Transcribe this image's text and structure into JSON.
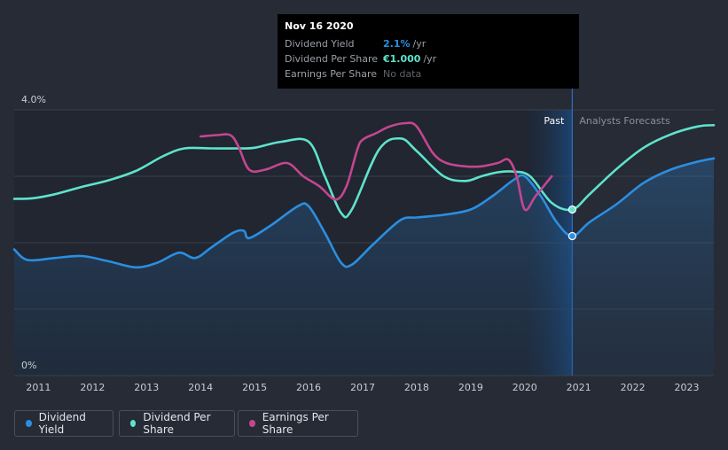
{
  "chart_data": {
    "type": "area",
    "y_labels": [
      "4.0%",
      "0%"
    ],
    "x_ticks": [
      "2011",
      "2012",
      "2013",
      "2014",
      "2015",
      "2016",
      "2017",
      "2018",
      "2019",
      "2020",
      "2021",
      "2022",
      "2023"
    ],
    "x_range": [
      2010.55,
      2023.5
    ],
    "ylim": [
      0,
      4.0
    ],
    "past_label": "Past",
    "forecast_label": "Analysts Forecasts",
    "hover_date": 2020.88,
    "series": [
      {
        "name": "Dividend Yield",
        "color": "#2b8ee0",
        "fill": true,
        "x": [
          2010.55,
          2010.8,
          2011.3,
          2011.8,
          2012.3,
          2012.8,
          2013.2,
          2013.6,
          2013.9,
          2014.2,
          2014.6,
          2014.8,
          2014.9,
          2015.3,
          2015.8,
          2016.0,
          2016.3,
          2016.6,
          2016.8,
          2017.2,
          2017.7,
          2018.0,
          2018.5,
          2019.0,
          2019.4,
          2019.8,
          2020.0,
          2020.3,
          2020.6,
          2020.88,
          2021.2,
          2021.7,
          2022.2,
          2022.7,
          2023.2,
          2023.5
        ],
        "values": [
          1.9,
          1.74,
          1.77,
          1.8,
          1.72,
          1.63,
          1.7,
          1.85,
          1.77,
          1.93,
          2.15,
          2.18,
          2.07,
          2.26,
          2.55,
          2.55,
          2.15,
          1.7,
          1.67,
          1.98,
          2.34,
          2.38,
          2.42,
          2.5,
          2.7,
          2.95,
          3.0,
          2.7,
          2.3,
          2.1,
          2.31,
          2.58,
          2.9,
          3.1,
          3.22,
          3.27
        ]
      },
      {
        "name": "Dividend Per Share",
        "color": "#5fe3cc",
        "fill": false,
        "x": [
          2010.55,
          2010.9,
          2011.3,
          2011.8,
          2012.3,
          2012.8,
          2013.3,
          2013.7,
          2014.2,
          2014.7,
          2015.0,
          2015.5,
          2016.0,
          2016.3,
          2016.6,
          2016.8,
          2017.3,
          2017.7,
          2018.0,
          2018.5,
          2018.9,
          2019.2,
          2019.5,
          2019.8,
          2020.1,
          2020.5,
          2020.88,
          2021.2,
          2021.7,
          2022.2,
          2022.7,
          2023.2,
          2023.5
        ],
        "values": [
          2.66,
          2.67,
          2.73,
          2.84,
          2.94,
          3.08,
          3.3,
          3.42,
          3.42,
          3.42,
          3.43,
          3.52,
          3.52,
          3.0,
          2.45,
          2.5,
          3.4,
          3.57,
          3.38,
          3.0,
          2.93,
          3.0,
          3.06,
          3.07,
          3.0,
          2.6,
          2.5,
          2.73,
          3.11,
          3.43,
          3.63,
          3.75,
          3.77
        ]
      },
      {
        "name": "Earnings Per Share",
        "color": "#c4468f",
        "fill": false,
        "x": [
          2014.0,
          2014.3,
          2014.55,
          2014.7,
          2014.9,
          2015.2,
          2015.6,
          2015.9,
          2016.2,
          2016.5,
          2016.7,
          2016.9,
          2017.0,
          2017.25,
          2017.5,
          2017.8,
          2018.0,
          2018.3,
          2018.55,
          2018.9,
          2019.2,
          2019.5,
          2019.7,
          2019.85,
          2020.0,
          2020.2,
          2020.5
        ],
        "values": [
          3.6,
          3.62,
          3.62,
          3.45,
          3.1,
          3.1,
          3.2,
          3.0,
          2.85,
          2.65,
          2.85,
          3.4,
          3.55,
          3.65,
          3.75,
          3.8,
          3.75,
          3.35,
          3.2,
          3.15,
          3.15,
          3.2,
          3.25,
          3.0,
          2.5,
          2.7,
          3.0
        ]
      }
    ],
    "hover_points": [
      {
        "series": "Dividend Yield",
        "value": 2.1
      },
      {
        "series": "Dividend Per Share",
        "value": 2.5
      }
    ]
  },
  "tooltip": {
    "date": "Nov 16 2020",
    "rows": [
      {
        "label": "Dividend Yield",
        "value": "2.1%",
        "unit": "/yr",
        "color": "#2b8ee0"
      },
      {
        "label": "Dividend Per Share",
        "value": "€1.000",
        "unit": "/yr",
        "color": "#5fe3cc"
      },
      {
        "label": "Earnings Per Share",
        "nodata": "No data"
      }
    ]
  },
  "legend": [
    {
      "label": "Dividend Yield",
      "color": "#2b8ee0"
    },
    {
      "label": "Dividend Per Share",
      "color": "#5fe3cc"
    },
    {
      "label": "Earnings Per Share",
      "color": "#c4468f"
    }
  ]
}
